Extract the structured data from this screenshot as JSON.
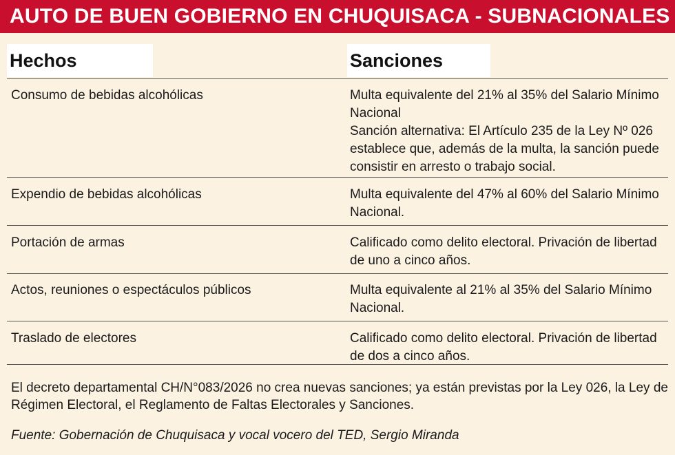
{
  "title": "AUTO DE BUEN GOBIERNO EN CHUQUISACA - SUBNACIONALES",
  "table": {
    "headers": {
      "hechos": "Hechos",
      "sanciones": "Sanciones"
    },
    "rows": [
      {
        "hecho": "Consumo de bebidas alcohólicas",
        "sancion_lines": [
          "Multa equivalente del 21% al 35% del Salario Mínimo Nacional",
          "Sanción alternativa: El Artículo 235 de la Ley Nº 026 establece que, además de la multa, la sanción puede consistir en arresto o trabajo social."
        ]
      },
      {
        "hecho": "Expendio de bebidas alcohólicas",
        "sancion_lines": [
          "Multa equivalente del 47% al 60% del Salario Mínimo Nacional."
        ]
      },
      {
        "hecho": "Portación de armas",
        "sancion_lines": [
          "Calificado como delito electoral. Privación de libertad de uno a cinco años."
        ]
      },
      {
        "hecho": "Actos, reuniones o espectáculos públicos",
        "sancion_lines": [
          "Multa equivalente al 21% al 35% del Salario Mínimo Nacional."
        ]
      },
      {
        "hecho": "Traslado de electores",
        "sancion_lines": [
          "Calificado como delito electoral. Privación de libertad de dos a cinco años."
        ]
      }
    ]
  },
  "note": "El decreto departamental CH/N°083/2026 no crea nuevas sanciones; ya están previstas por la Ley 026, la Ley de Régimen Electoral, el Reglamento de Faltas Electorales y Sanciones.",
  "source": "Fuente: Gobernación de Chuquisaca y vocal vocero del TED, Sergio Miranda",
  "colors": {
    "banner": "#c8102e",
    "background": "#fbf2e2",
    "header_cell": "#ffffff",
    "text": "#1a1a1a"
  }
}
